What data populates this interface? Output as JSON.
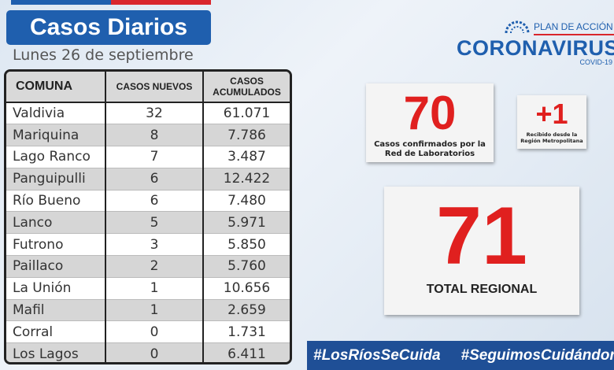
{
  "header": {
    "title": "Casos Diarios",
    "date": "Lunes 26 de septiembre"
  },
  "table": {
    "headers": {
      "comuna": "COMUNA",
      "nuevos": "CASOS NUEVOS",
      "acumulados_1": "CASOS",
      "acumulados_2": "ACUMULADOS"
    },
    "rows": [
      {
        "comuna": "Valdivia",
        "nuevos": "32",
        "acumulados": "61.071"
      },
      {
        "comuna": "Mariquina",
        "nuevos": "8",
        "acumulados": "7.786"
      },
      {
        "comuna": "Lago Ranco",
        "nuevos": "7",
        "acumulados": "3.487"
      },
      {
        "comuna": "Panguipulli",
        "nuevos": "6",
        "acumulados": "12.422"
      },
      {
        "comuna": "Río Bueno",
        "nuevos": "6",
        "acumulados": "7.480"
      },
      {
        "comuna": "Lanco",
        "nuevos": "5",
        "acumulados": "5.971"
      },
      {
        "comuna": "Futrono",
        "nuevos": "3",
        "acumulados": "5.850"
      },
      {
        "comuna": "Paillaco",
        "nuevos": "2",
        "acumulados": "5.760"
      },
      {
        "comuna": "La Unión",
        "nuevos": "1",
        "acumulados": "10.656"
      },
      {
        "comuna": "Mafil",
        "nuevos": "1",
        "acumulados": "2.659"
      },
      {
        "comuna": "Corral",
        "nuevos": "0",
        "acumulados": "1.731"
      },
      {
        "comuna": "Los Lagos",
        "nuevos": "0",
        "acumulados": "6.411"
      }
    ]
  },
  "logo": {
    "plan": "PLAN DE ACCIÓN",
    "brand": "CORONAVIRUS",
    "sub": "COVID-19"
  },
  "cards": {
    "confirmados": {
      "value": "70",
      "label": "Casos confirmados por la Red de Laboratorios"
    },
    "recibido": {
      "value": "+1",
      "label": "Recibido desde la Región Metropolitana"
    },
    "total": {
      "value": "71",
      "label": "TOTAL REGIONAL"
    }
  },
  "hashtags": [
    "#LosRíosSeCuida",
    "#SeguimosCuidándonos"
  ],
  "colors": {
    "brand_blue": "#1f5fae",
    "accent_red": "#e0201f",
    "bar_blue": "#1f4f96"
  }
}
